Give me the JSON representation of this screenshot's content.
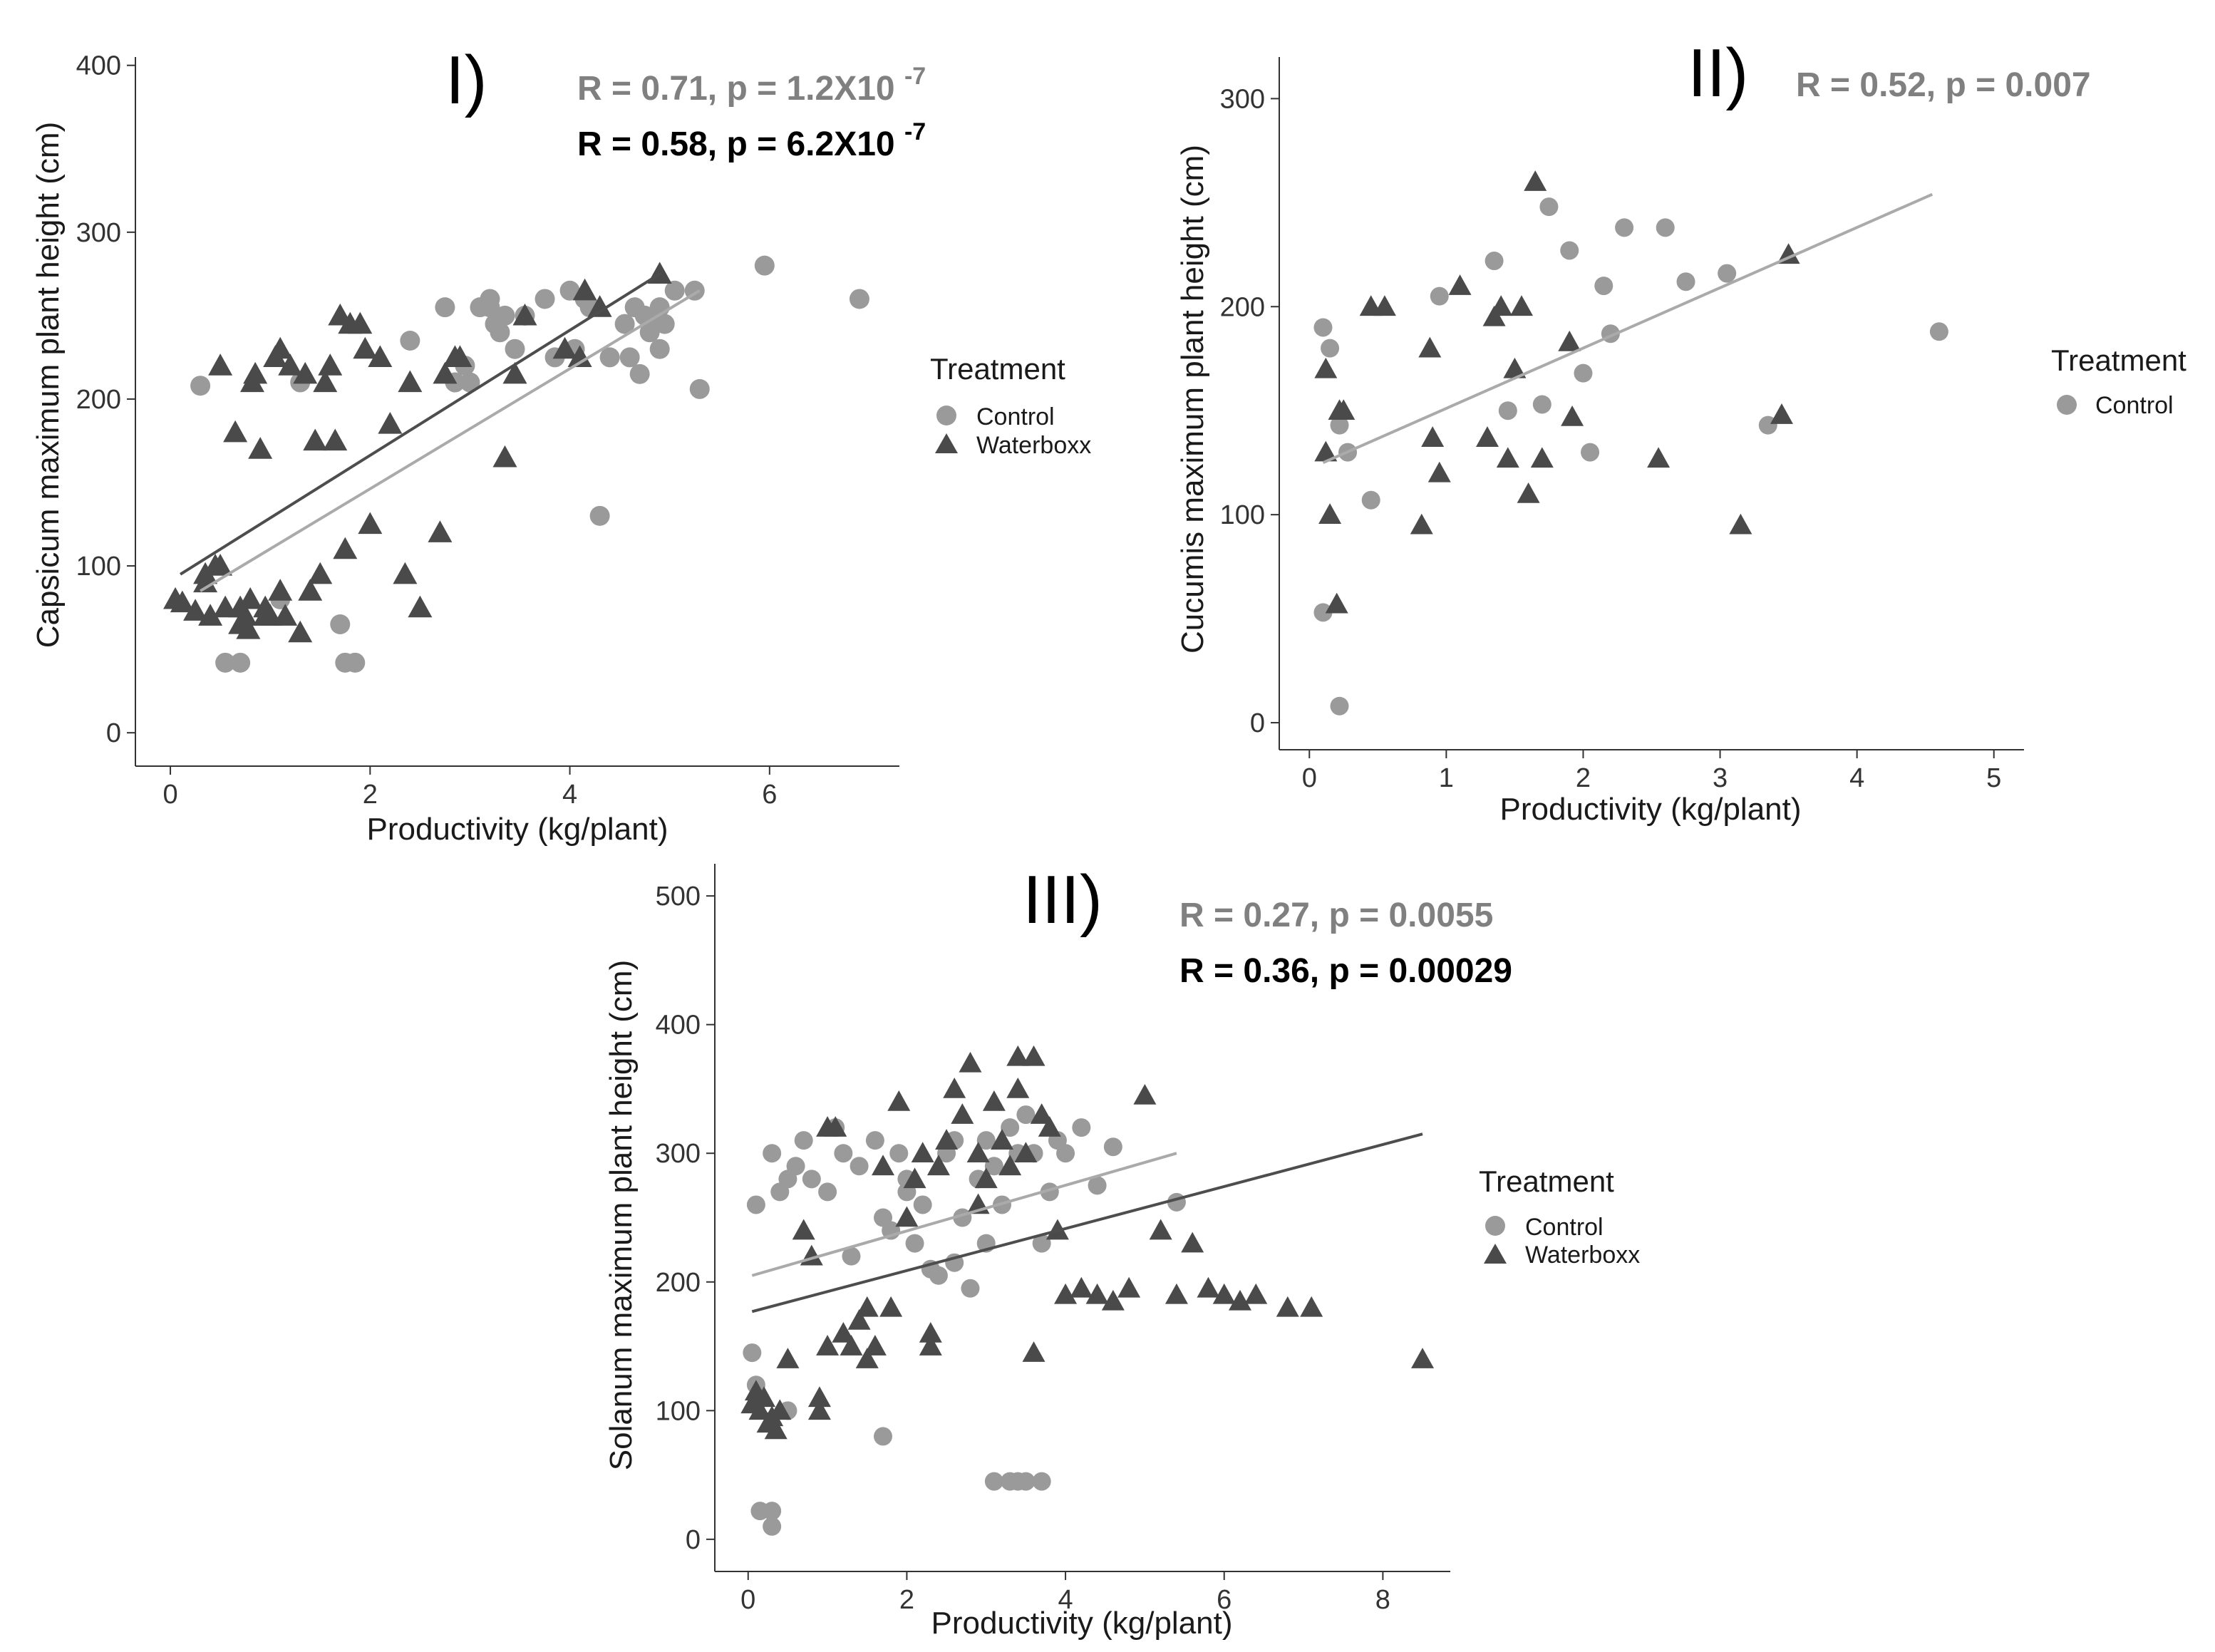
{
  "colors": {
    "control": "#9a9a9a",
    "waterboxx": "#4a4a4a",
    "axis": "#333333",
    "stat_control": "#808080",
    "stat_waterboxx": "#000000"
  },
  "chart_data": [
    {
      "type": "scatter",
      "label": "I)",
      "xlabel": "Productivity (kg/plant)",
      "ylabel": "Capsicum maximum plant height (cm)",
      "xlim": [
        -0.35,
        7.3
      ],
      "ylim": [
        -20,
        405
      ],
      "xticks": [
        0,
        2,
        4,
        6
      ],
      "yticks": [
        0,
        100,
        200,
        300,
        400
      ],
      "tick_labels_x": [
        "0",
        "2",
        "4",
        "6"
      ],
      "tick_labels_y": [
        "0",
        "100",
        "200",
        "300",
        "400"
      ],
      "legend": {
        "title": "Treatment",
        "entries": [
          "Control",
          "Waterboxx"
        ]
      },
      "stats": [
        {
          "series": "Control",
          "text": "R = 0.71, p = 1.2X10",
          "exp": "-7"
        },
        {
          "series": "Waterboxx",
          "text": "R = 0.58, p = 6.2X10",
          "exp": "-7"
        }
      ],
      "series": [
        {
          "name": "Control",
          "shape": "circle",
          "fit": {
            "x": [
              0.3,
              5.3
            ],
            "y": [
              85,
              265
            ]
          },
          "x": [
            0.3,
            0.55,
            0.7,
            1.1,
            1.3,
            1.7,
            1.75,
            1.85,
            2.4,
            2.75,
            2.85,
            2.95,
            3.0,
            3.1,
            3.2,
            3.2,
            3.25,
            3.3,
            3.35,
            3.45,
            3.55,
            3.75,
            3.85,
            4.0,
            4.05,
            4.15,
            4.2,
            4.3,
            4.4,
            4.55,
            4.6,
            4.65,
            4.7,
            4.75,
            4.8,
            4.85,
            4.9,
            4.9,
            4.95,
            5.05,
            5.25,
            5.3,
            5.95,
            6.9
          ],
          "y": [
            208,
            42,
            42,
            80,
            210,
            65,
            42,
            42,
            235,
            255,
            210,
            220,
            210,
            255,
            255,
            260,
            245,
            240,
            250,
            230,
            250,
            260,
            225,
            265,
            230,
            260,
            255,
            130,
            225,
            245,
            225,
            255,
            215,
            250,
            240,
            245,
            230,
            255,
            245,
            265,
            265,
            206,
            280,
            260
          ]
        },
        {
          "name": "Waterboxx",
          "shape": "triangle",
          "fit": {
            "x": [
              0.1,
              4.9
            ],
            "y": [
              95,
              275
            ]
          },
          "x": [
            0.05,
            0.12,
            0.25,
            0.35,
            0.4,
            0.45,
            0.5,
            0.55,
            0.65,
            0.7,
            0.75,
            0.78,
            0.82,
            0.85,
            0.9,
            0.95,
            1.0,
            1.05,
            1.1,
            1.15,
            1.2,
            1.3,
            1.35,
            1.4,
            1.45,
            1.5,
            1.55,
            1.6,
            1.65,
            1.7,
            1.75,
            1.8,
            1.9,
            1.95,
            2.0,
            2.1,
            2.2,
            2.35,
            2.4,
            2.5,
            2.7,
            2.75,
            2.85,
            2.9,
            3.35,
            3.45,
            3.55,
            3.95,
            4.1,
            4.15,
            4.3,
            4.9,
            0.35,
            0.5,
            0.7,
            0.8,
            0.95,
            1.1
          ],
          "y": [
            80,
            78,
            73,
            95,
            70,
            100,
            220,
            75,
            180,
            75,
            70,
            62,
            210,
            215,
            170,
            70,
            70,
            225,
            230,
            70,
            220,
            60,
            215,
            85,
            175,
            95,
            210,
            220,
            175,
            250,
            110,
            245,
            245,
            230,
            125,
            225,
            185,
            95,
            210,
            75,
            120,
            215,
            225,
            225,
            165,
            215,
            250,
            230,
            225,
            265,
            255,
            275,
            90,
            100,
            65,
            80,
            75,
            85
          ]
        }
      ]
    },
    {
      "type": "scatter",
      "label": "II)",
      "xlabel": "Productivity (kg/plant)",
      "ylabel": "Cucumis maximum plant height (cm)",
      "xlim": [
        -0.22,
        5.22
      ],
      "ylim": [
        -13,
        320
      ],
      "xticks": [
        0,
        1,
        2,
        3,
        4,
        5
      ],
      "yticks": [
        0,
        100,
        200,
        300
      ],
      "tick_labels_x": [
        "0",
        "1",
        "2",
        "3",
        "4",
        "5"
      ],
      "tick_labels_y": [
        "0",
        "100",
        "200",
        "300"
      ],
      "legend": {
        "title": "Treatment",
        "entries": [
          "Control"
        ]
      },
      "stats": [
        {
          "series": "Control",
          "text": "R = 0.52, p = 0.007",
          "exp": ""
        }
      ],
      "series": [
        {
          "name": "Control",
          "shape": "circle",
          "fit": {
            "x": [
              0.1,
              4.55
            ],
            "y": [
              125,
              254
            ]
          },
          "x": [
            0.1,
            0.1,
            0.15,
            0.22,
            0.22,
            0.28,
            0.45,
            0.95,
            1.35,
            1.45,
            1.7,
            1.75,
            1.9,
            2.0,
            2.05,
            2.15,
            2.2,
            2.3,
            2.6,
            2.75,
            3.05,
            3.35,
            4.6
          ],
          "y": [
            190,
            53,
            180,
            8,
            143,
            130,
            107,
            205,
            222,
            150,
            153,
            248,
            227,
            168,
            130,
            210,
            187,
            238,
            238,
            212,
            216,
            143,
            188
          ]
        },
        {
          "name": "Waterboxx",
          "shape": "triangle",
          "x": [
            0.12,
            0.12,
            0.15,
            0.2,
            0.22,
            0.25,
            0.45,
            0.55,
            0.82,
            0.88,
            0.9,
            0.95,
            1.1,
            1.3,
            1.35,
            1.4,
            1.45,
            1.5,
            1.55,
            1.6,
            1.65,
            1.7,
            1.9,
            1.92,
            2.55,
            3.15,
            3.45,
            3.5
          ],
          "y": [
            170,
            130,
            100,
            57,
            150,
            150,
            200,
            200,
            95,
            180,
            137,
            120,
            210,
            137,
            195,
            200,
            127,
            170,
            200,
            110,
            260,
            127,
            183,
            147,
            127,
            95,
            148,
            225
          ]
        }
      ]
    },
    {
      "type": "scatter",
      "label": "III)",
      "xlabel": "Productivity (kg/plant)",
      "ylabel": "Solanum maximum plant height (cm)",
      "xlim": [
        -0.42,
        8.85
      ],
      "ylim": [
        -25,
        525
      ],
      "xticks": [
        0,
        2,
        4,
        6,
        8
      ],
      "yticks": [
        0,
        100,
        200,
        300,
        400,
        500
      ],
      "tick_labels_x": [
        "0",
        "2",
        "4",
        "6",
        "8"
      ],
      "tick_labels_y": [
        "0",
        "100",
        "200",
        "300",
        "400",
        "500"
      ],
      "legend": {
        "title": "Treatment",
        "entries": [
          "Control",
          "Waterboxx"
        ]
      },
      "stats": [
        {
          "series": "Control",
          "text": "R = 0.27, p = 0.0055",
          "exp": ""
        },
        {
          "series": "Waterboxx",
          "text": "R = 0.36, p = 0.00029",
          "exp": ""
        }
      ],
      "series": [
        {
          "name": "Control",
          "shape": "circle",
          "fit": {
            "x": [
              0.05,
              5.4
            ],
            "y": [
              205,
              300
            ]
          },
          "x": [
            0.05,
            0.1,
            0.1,
            0.3,
            0.3,
            0.3,
            0.4,
            0.5,
            0.6,
            0.7,
            0.8,
            1.0,
            1.1,
            1.2,
            1.4,
            1.6,
            1.7,
            1.7,
            1.8,
            1.9,
            2.0,
            2.1,
            2.2,
            2.3,
            2.4,
            2.5,
            2.6,
            2.7,
            2.8,
            2.9,
            3.0,
            3.1,
            3.2,
            3.3,
            3.4,
            3.5,
            3.6,
            3.7,
            3.8,
            3.9,
            4.0,
            4.2,
            4.4,
            4.6,
            5.4,
            3.1,
            3.3,
            3.4,
            3.5,
            3.7,
            0.15,
            0.5,
            1.3,
            2.0,
            2.6,
            3.0
          ],
          "y": [
            145,
            120,
            260,
            10,
            22,
            300,
            270,
            280,
            290,
            310,
            280,
            270,
            320,
            300,
            290,
            310,
            250,
            80,
            240,
            300,
            280,
            230,
            260,
            210,
            205,
            300,
            215,
            250,
            195,
            280,
            310,
            290,
            260,
            320,
            300,
            330,
            300,
            230,
            270,
            310,
            300,
            320,
            275,
            305,
            262,
            45,
            45,
            45,
            45,
            45,
            22,
            100,
            220,
            270,
            310,
            230
          ]
        },
        {
          "name": "Waterboxx",
          "shape": "triangle",
          "fit": {
            "x": [
              0.05,
              8.5
            ],
            "y": [
              177,
              315
            ]
          },
          "x": [
            0.05,
            0.1,
            0.15,
            0.2,
            0.25,
            0.3,
            0.35,
            0.4,
            0.5,
            0.7,
            0.8,
            0.9,
            1.0,
            1.1,
            1.2,
            1.3,
            1.4,
            1.5,
            1.6,
            1.7,
            1.8,
            1.9,
            2.0,
            2.1,
            2.2,
            2.3,
            2.4,
            2.5,
            2.6,
            2.7,
            2.8,
            2.9,
            3.0,
            3.1,
            3.2,
            3.3,
            3.4,
            3.5,
            3.6,
            3.7,
            3.8,
            3.9,
            4.0,
            4.2,
            4.4,
            4.6,
            4.8,
            5.0,
            5.2,
            5.4,
            5.6,
            5.8,
            6.0,
            6.2,
            6.4,
            6.8,
            7.1,
            8.5,
            3.6,
            3.4,
            2.9,
            1.0,
            0.9,
            1.5,
            2.3
          ],
          "y": [
            105,
            115,
            100,
            110,
            90,
            95,
            85,
            100,
            140,
            240,
            220,
            100,
            150,
            320,
            160,
            150,
            170,
            180,
            150,
            290,
            180,
            340,
            250,
            280,
            300,
            150,
            290,
            310,
            350,
            330,
            370,
            300,
            280,
            340,
            310,
            290,
            350,
            300,
            145,
            330,
            320,
            240,
            190,
            195,
            190,
            185,
            195,
            345,
            240,
            190,
            230,
            195,
            190,
            185,
            190,
            180,
            180,
            140,
            375,
            375,
            260,
            320,
            110,
            140,
            160
          ]
        }
      ]
    }
  ]
}
